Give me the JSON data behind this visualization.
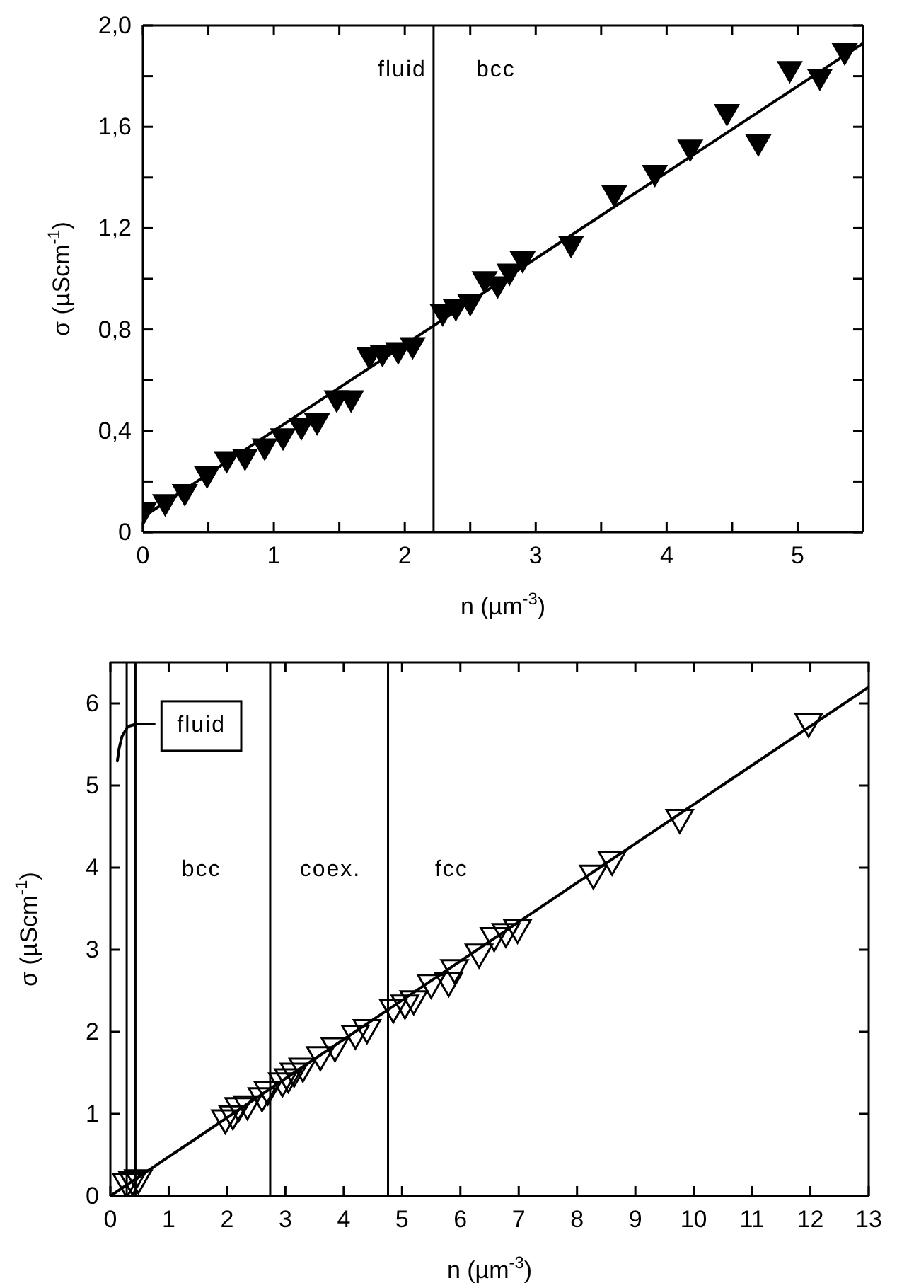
{
  "chart_data": [
    {
      "type": "scatter",
      "xlabel": "n (µm$^{-3}$)",
      "ylabel": "σ (µScm$^{-1}$)",
      "xlim": [
        0,
        5.5
      ],
      "ylim": [
        0,
        2.0
      ],
      "xticks": [
        0,
        {
          "value": 0.5,
          "label": null
        },
        1,
        {
          "value": 1.5,
          "label": null
        },
        2,
        {
          "value": 2.5,
          "label": null
        },
        3,
        {
          "value": 3.5,
          "label": null
        },
        4,
        {
          "value": 4.5,
          "label": null
        },
        5
      ],
      "yticks": [
        0,
        {
          "value": 0.2,
          "label": null
        },
        {
          "value": 0.4,
          "label": "0,4"
        },
        {
          "value": 0.6,
          "label": null
        },
        {
          "value": 0.8,
          "label": "0,8"
        },
        {
          "value": 1.0,
          "label": null
        },
        {
          "value": 1.2,
          "label": "1,2"
        },
        {
          "value": 1.4,
          "label": null
        },
        {
          "value": 1.6,
          "label": "1,6"
        },
        {
          "value": 1.8,
          "label": null
        },
        {
          "value": 2.0,
          "label": "2,0"
        }
      ],
      "series": [
        {
          "marker": "triangle",
          "color": "#000000",
          "x": [
            0.01,
            0.17,
            0.32,
            0.49,
            0.64,
            0.78,
            0.93,
            1.07,
            1.21,
            1.33,
            1.48,
            1.59,
            1.73,
            1.83,
            1.95,
            2.06,
            2.29,
            2.39,
            2.5,
            2.61,
            2.71,
            2.8,
            2.9,
            3.27,
            3.6,
            3.91,
            4.18,
            4.46,
            4.7,
            4.94,
            5.17,
            5.36
          ],
          "values": [
            0.09,
            0.12,
            0.16,
            0.23,
            0.29,
            0.3,
            0.34,
            0.38,
            0.42,
            0.44,
            0.53,
            0.53,
            0.7,
            0.71,
            0.72,
            0.74,
            0.87,
            0.89,
            0.91,
            1.0,
            0.98,
            1.03,
            1.08,
            1.14,
            1.34,
            1.42,
            1.52,
            1.66,
            1.54,
            1.83,
            1.8,
            1.9
          ]
        },
        {
          "type": "line",
          "color": "#000000",
          "x": [
            0,
            5.5
          ],
          "values": [
            0.06,
            1.93
          ]
        }
      ],
      "ref_lines": [
        {
          "axis": "x",
          "value": 2.22
        }
      ],
      "annotations": [
        "fluid",
        "bcc"
      ]
    },
    {
      "type": "scatter",
      "xlabel": "n (µm$^{-3}$)",
      "ylabel": "σ (µScm$^{-1}$)",
      "xlim": [
        0,
        13
      ],
      "ylim": [
        0,
        6.5
      ],
      "xticks": [
        0,
        1,
        2,
        3,
        4,
        5,
        6,
        7,
        8,
        9,
        10,
        11,
        12,
        13
      ],
      "yticks": [
        0,
        1,
        2,
        3,
        4,
        5,
        6
      ],
      "series": [
        {
          "marker": "triangle",
          "color": "#000000",
          "x": [
            0.28,
            0.38,
            0.48,
            1.97,
            2.1,
            2.2,
            2.35,
            2.6,
            2.7,
            2.95,
            3.05,
            3.15,
            3.3,
            3.6,
            3.85,
            4.2,
            4.4,
            4.85,
            5.05,
            5.2,
            5.5,
            5.8,
            5.9,
            6.32,
            6.58,
            6.78,
            6.98,
            8.28,
            8.6,
            9.76,
            11.97
          ],
          "values": [
            0.17,
            0.2,
            0.22,
            0.95,
            1.0,
            1.1,
            1.12,
            1.22,
            1.3,
            1.4,
            1.45,
            1.52,
            1.58,
            1.72,
            1.83,
            1.98,
            2.05,
            2.3,
            2.35,
            2.4,
            2.6,
            2.62,
            2.78,
            2.97,
            3.17,
            3.22,
            3.27,
            3.93,
            4.1,
            4.61,
            5.78
          ]
        },
        {
          "type": "line",
          "color": "#000000",
          "x": [
            0,
            13
          ],
          "values": [
            0,
            6.2
          ]
        },
        {
          "type": "line",
          "color": "#000000",
          "x": [
            0.12,
            0.15,
            0.2,
            0.3,
            0.45,
            0.75
          ],
          "values": [
            5.3,
            5.45,
            5.6,
            5.72,
            5.75,
            5.75
          ]
        }
      ],
      "ref_lines": [
        {
          "axis": "x",
          "value": 0.28
        },
        {
          "axis": "x",
          "value": 0.43
        },
        {
          "axis": "x",
          "value": 2.74
        },
        {
          "axis": "x",
          "value": 4.76
        }
      ],
      "annotations": [
        "fluid",
        "bcc",
        "coex.",
        "fcc"
      ]
    }
  ]
}
